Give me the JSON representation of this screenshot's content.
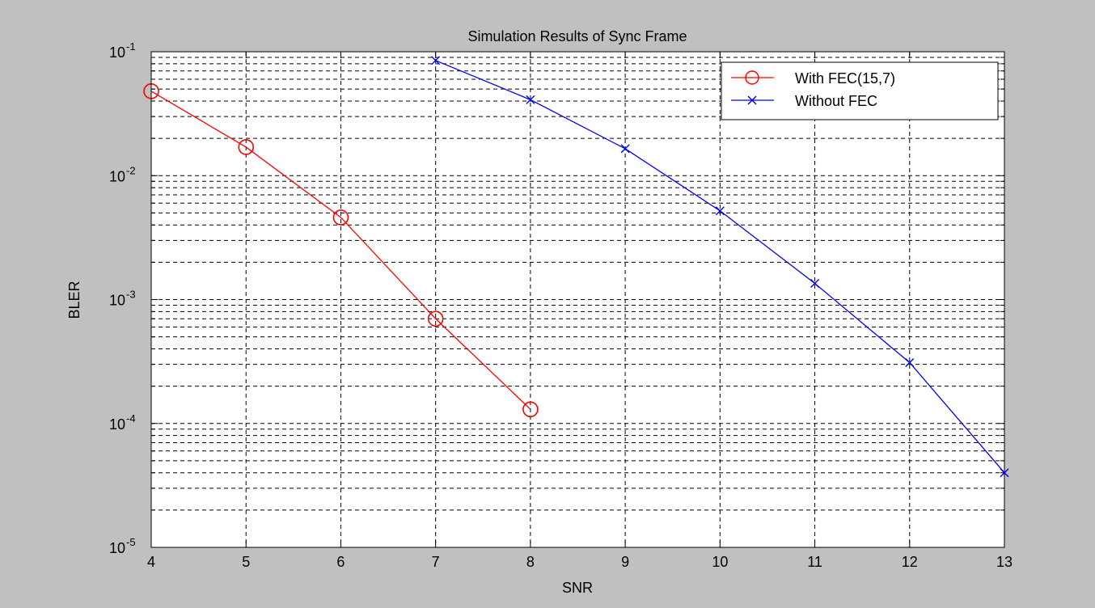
{
  "chart_data": {
    "type": "line",
    "title": "Simulation Results of Sync Frame",
    "xlabel": "SNR",
    "ylabel": "BLER",
    "xlim": [
      4,
      13
    ],
    "ylim": [
      1e-05,
      0.1
    ],
    "y_scale": "log",
    "grid": true,
    "legend_position": "top-right",
    "x_ticks": [
      4,
      5,
      6,
      7,
      8,
      9,
      10,
      11,
      12,
      13
    ],
    "x_tick_labels": [
      "4",
      "5",
      "6",
      "7",
      "8",
      "9",
      "10",
      "11",
      "12",
      "13"
    ],
    "y_ticks": [
      {
        "value": 0.1,
        "base": "10",
        "exp": "-1"
      },
      {
        "value": 0.01,
        "base": "10",
        "exp": "-2"
      },
      {
        "value": 0.001,
        "base": "10",
        "exp": "-3"
      },
      {
        "value": 0.0001,
        "base": "10",
        "exp": "-4"
      },
      {
        "value": 1e-05,
        "base": "10",
        "exp": "-5"
      }
    ],
    "series": [
      {
        "name": "With FEC(15,7)",
        "color": "#ff0000",
        "marker": "circle",
        "x": [
          4,
          5,
          6,
          7,
          8
        ],
        "y": [
          0.048,
          0.017,
          0.0046,
          0.0007,
          0.00013
        ]
      },
      {
        "name": "Without FEC",
        "color": "#0000ff",
        "marker": "x",
        "x": [
          7,
          8,
          9,
          10,
          11,
          12,
          13
        ],
        "y": [
          0.085,
          0.041,
          0.0165,
          0.0052,
          0.00135,
          0.00031,
          4e-05
        ]
      }
    ],
    "colors": {
      "figure_background": "#c0c0c0",
      "axes_background": "#ffffff",
      "grid": "#000000"
    }
  }
}
